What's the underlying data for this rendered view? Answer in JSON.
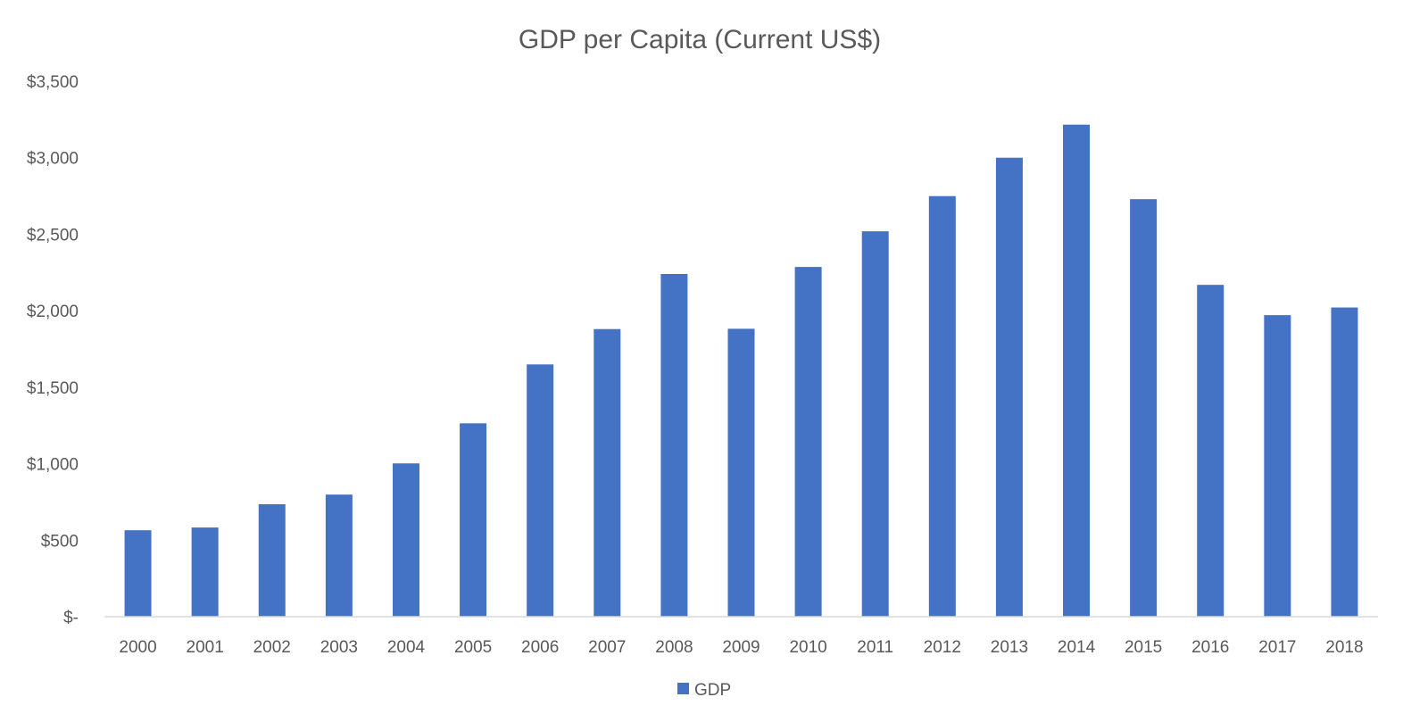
{
  "chart_data": {
    "type": "bar",
    "title": "GDP per Capita (Current US$)",
    "xlabel": "",
    "ylabel": "",
    "categories": [
      "2000",
      "2001",
      "2002",
      "2003",
      "2004",
      "2005",
      "2006",
      "2007",
      "2008",
      "2009",
      "2010",
      "2011",
      "2012",
      "2013",
      "2014",
      "2015",
      "2016",
      "2017",
      "2018"
    ],
    "series": [
      {
        "name": "GDP",
        "color": "#4472c4",
        "values": [
          565,
          583,
          735,
          798,
          1002,
          1264,
          1649,
          1880,
          2240,
          1882,
          2286,
          2519,
          2749,
          3000,
          3216,
          2729,
          2169,
          1971,
          2021
        ]
      }
    ],
    "ylim": [
      0,
      3500
    ],
    "y_ticks": [
      {
        "value": 0,
        "label": "$-"
      },
      {
        "value": 500,
        "label": "$500"
      },
      {
        "value": 1000,
        "label": "$1,000"
      },
      {
        "value": 1500,
        "label": "$1,500"
      },
      {
        "value": 2000,
        "label": "$2,000"
      },
      {
        "value": 2500,
        "label": "$2,500"
      },
      {
        "value": 3000,
        "label": "$3,000"
      },
      {
        "value": 3500,
        "label": "$3,500"
      }
    ],
    "grid": false,
    "legend": {
      "position": "bottom",
      "entries": [
        "GDP"
      ]
    },
    "colors": {
      "axis": "#d9d9d9",
      "text": "#595959"
    }
  }
}
